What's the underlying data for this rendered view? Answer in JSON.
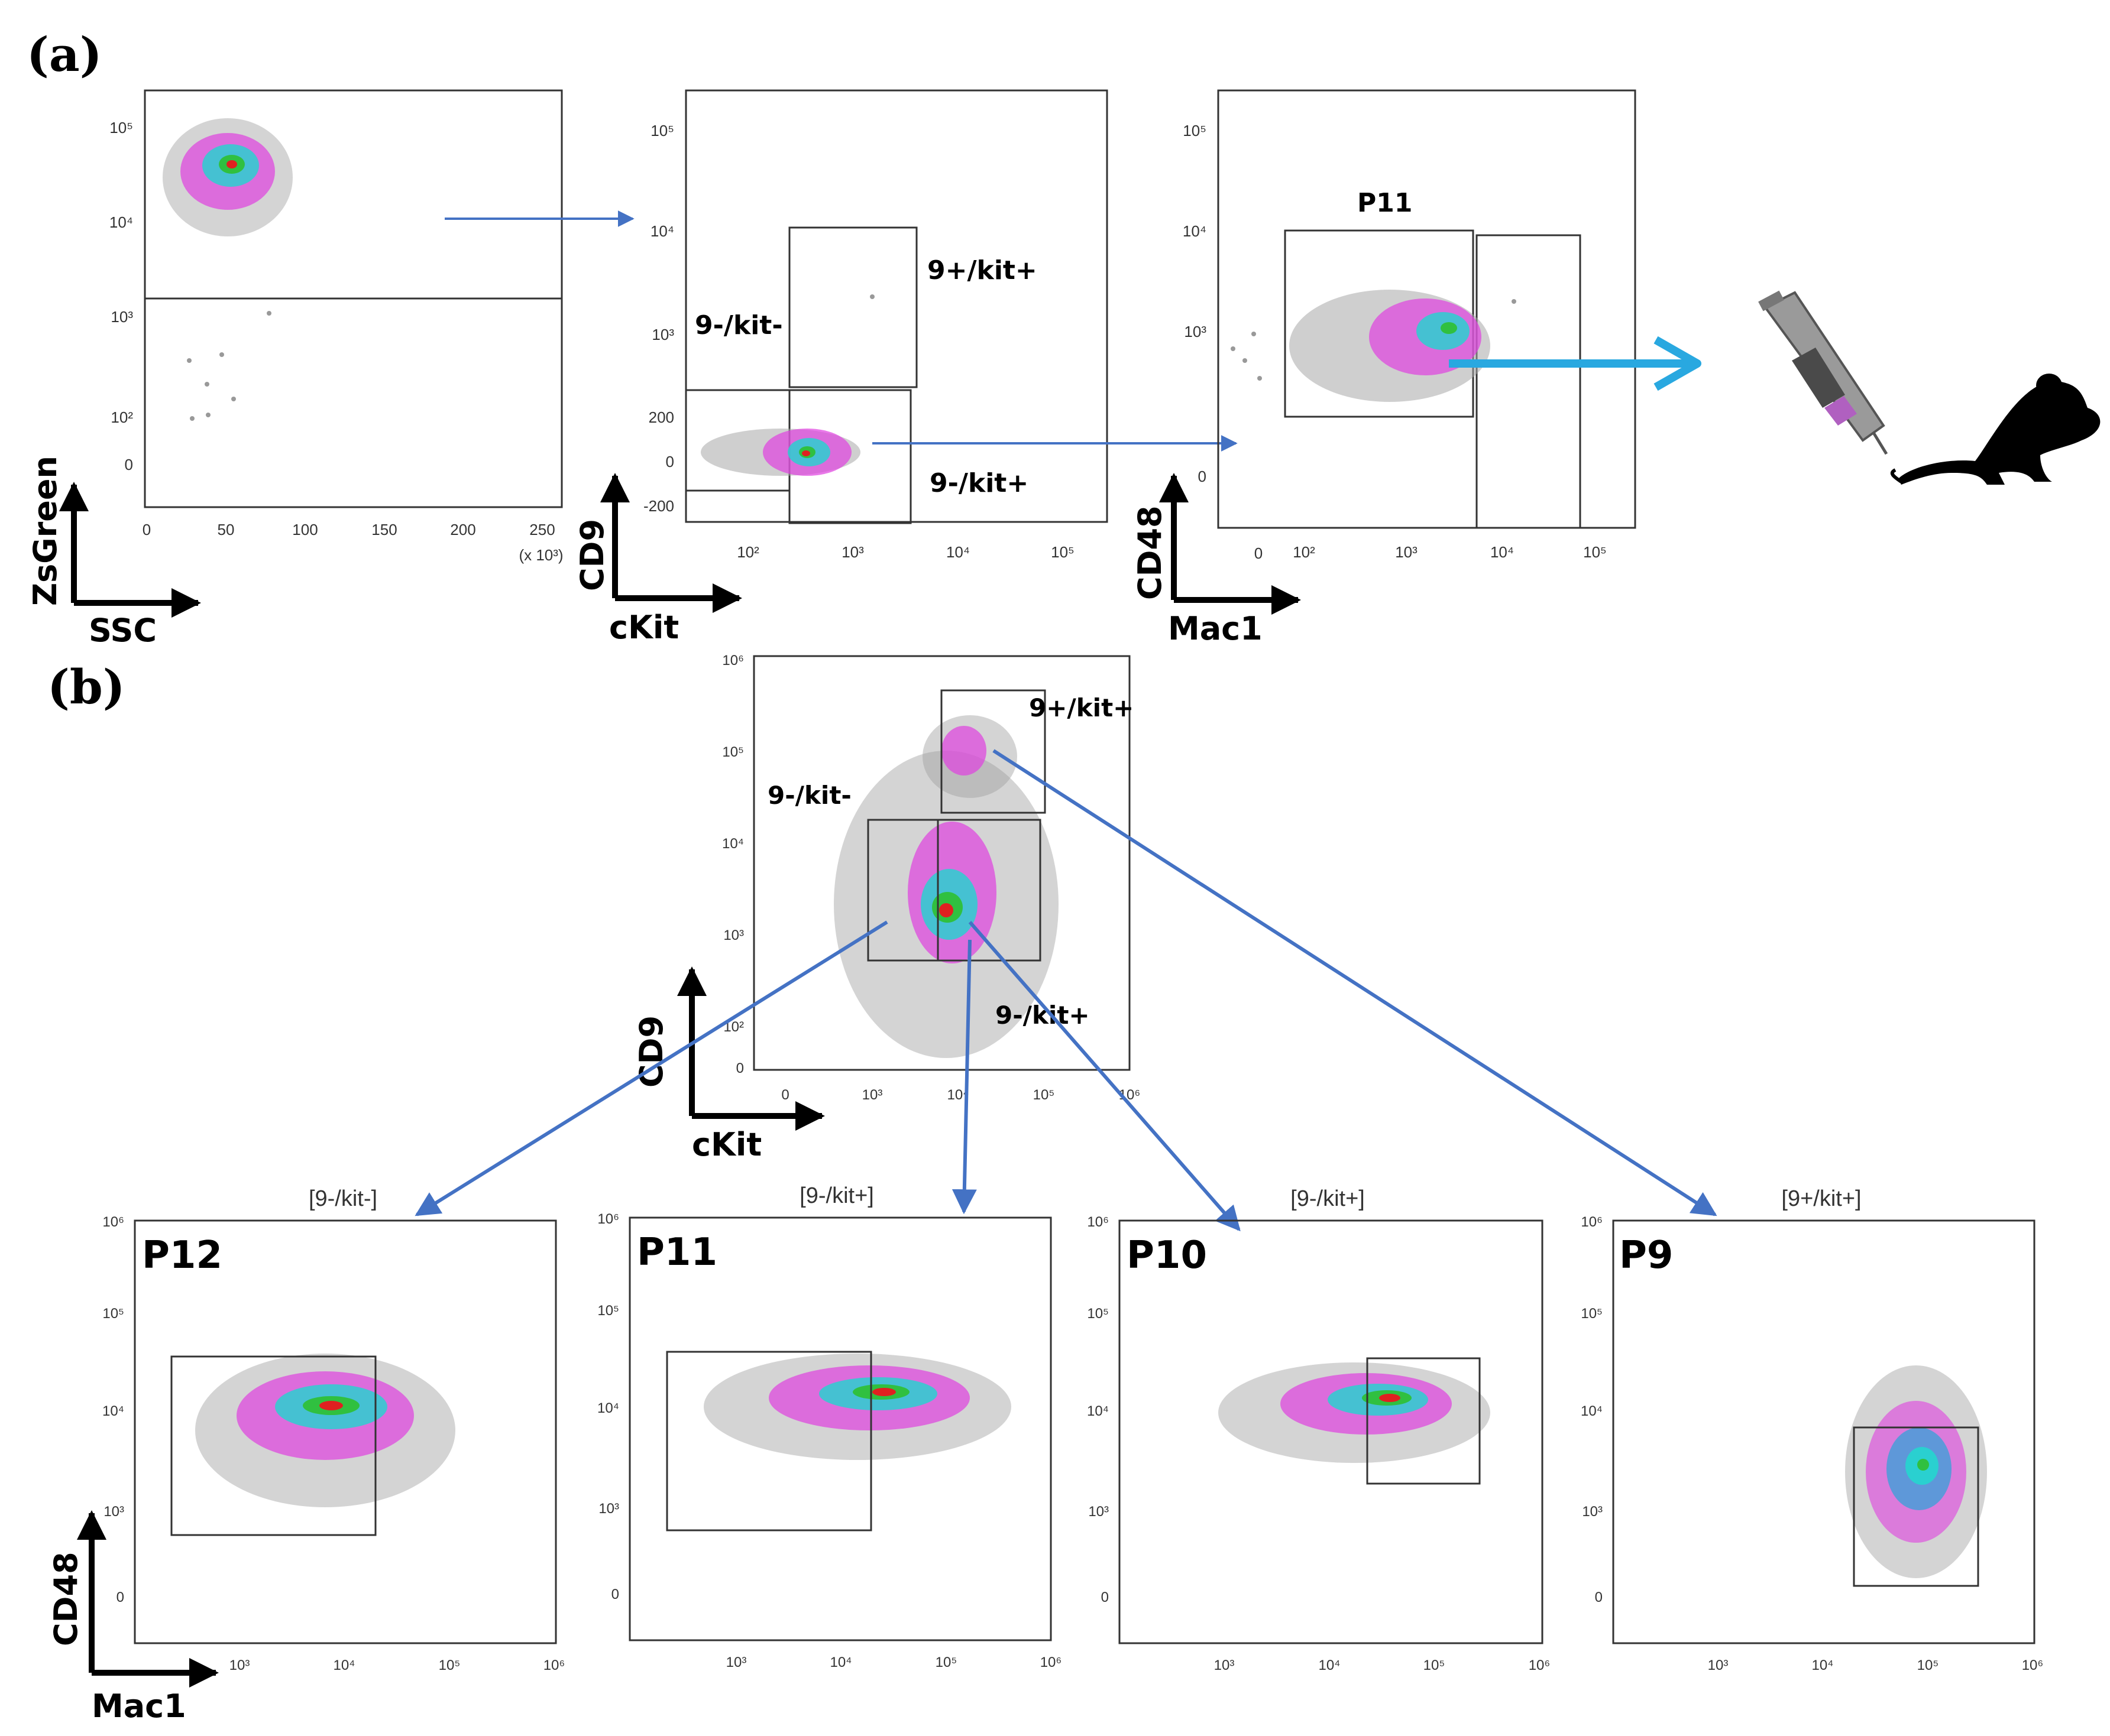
{
  "figure": {
    "panel_a_label": "(a)",
    "panel_b_label": "(b)",
    "colors": {
      "arrow": "#4472c4",
      "arrow_big": "#29a8e0",
      "frame": "#333333"
    }
  },
  "panel_a": {
    "plot1": {
      "xticks": [
        "0",
        "50",
        "100",
        "150",
        "200",
        "250"
      ],
      "x_multiplier": "(x 10³)",
      "yticks": [
        "10⁵",
        "10⁴",
        "10³",
        "10²",
        "0"
      ],
      "xlabel": "SSC",
      "ylabel": "ZsGreen"
    },
    "plot2": {
      "xticks": [
        "10²",
        "10³",
        "10⁴",
        "10⁵"
      ],
      "yticks": [
        "10⁵",
        "10⁴",
        "10³",
        "200",
        "0",
        "-200"
      ],
      "xlabel": "cKit",
      "ylabel": "CD9",
      "gates": [
        "9+/kit+",
        "9-/kit-",
        "9-/kit+"
      ]
    },
    "plot3": {
      "xticks": [
        "0",
        "10²",
        "10³",
        "10⁴",
        "10⁵"
      ],
      "yticks": [
        "10⁵",
        "10⁴",
        "10³",
        "0"
      ],
      "xlabel": "Mac1",
      "ylabel": "CD48",
      "gate": "P11"
    }
  },
  "panel_b": {
    "center": {
      "xticks": [
        "0",
        "10³",
        "10⁴",
        "10⁵",
        "10⁶"
      ],
      "yticks": [
        "10⁶",
        "10⁵",
        "10⁴",
        "10³",
        "10²",
        "0"
      ],
      "xlabel": "cKit",
      "ylabel": "CD9",
      "gates": [
        "9+/kit+",
        "9-/kit-",
        "9-/kit+"
      ]
    },
    "small_plots": [
      {
        "header": "[9-/kit-]",
        "label": "P12"
      },
      {
        "header": "[9-/kit+]",
        "label": "P11"
      },
      {
        "header": "[9-/kit+]",
        "label": "P10"
      },
      {
        "header": "[9+/kit+]",
        "label": "P9"
      }
    ],
    "small_xticks": [
      "10³",
      "10⁴",
      "10⁵",
      "10⁶"
    ],
    "small_yticks": [
      "10⁶",
      "10⁵",
      "10⁴",
      "10³",
      "0"
    ],
    "xlabel": "Mac1",
    "ylabel": "CD48"
  }
}
